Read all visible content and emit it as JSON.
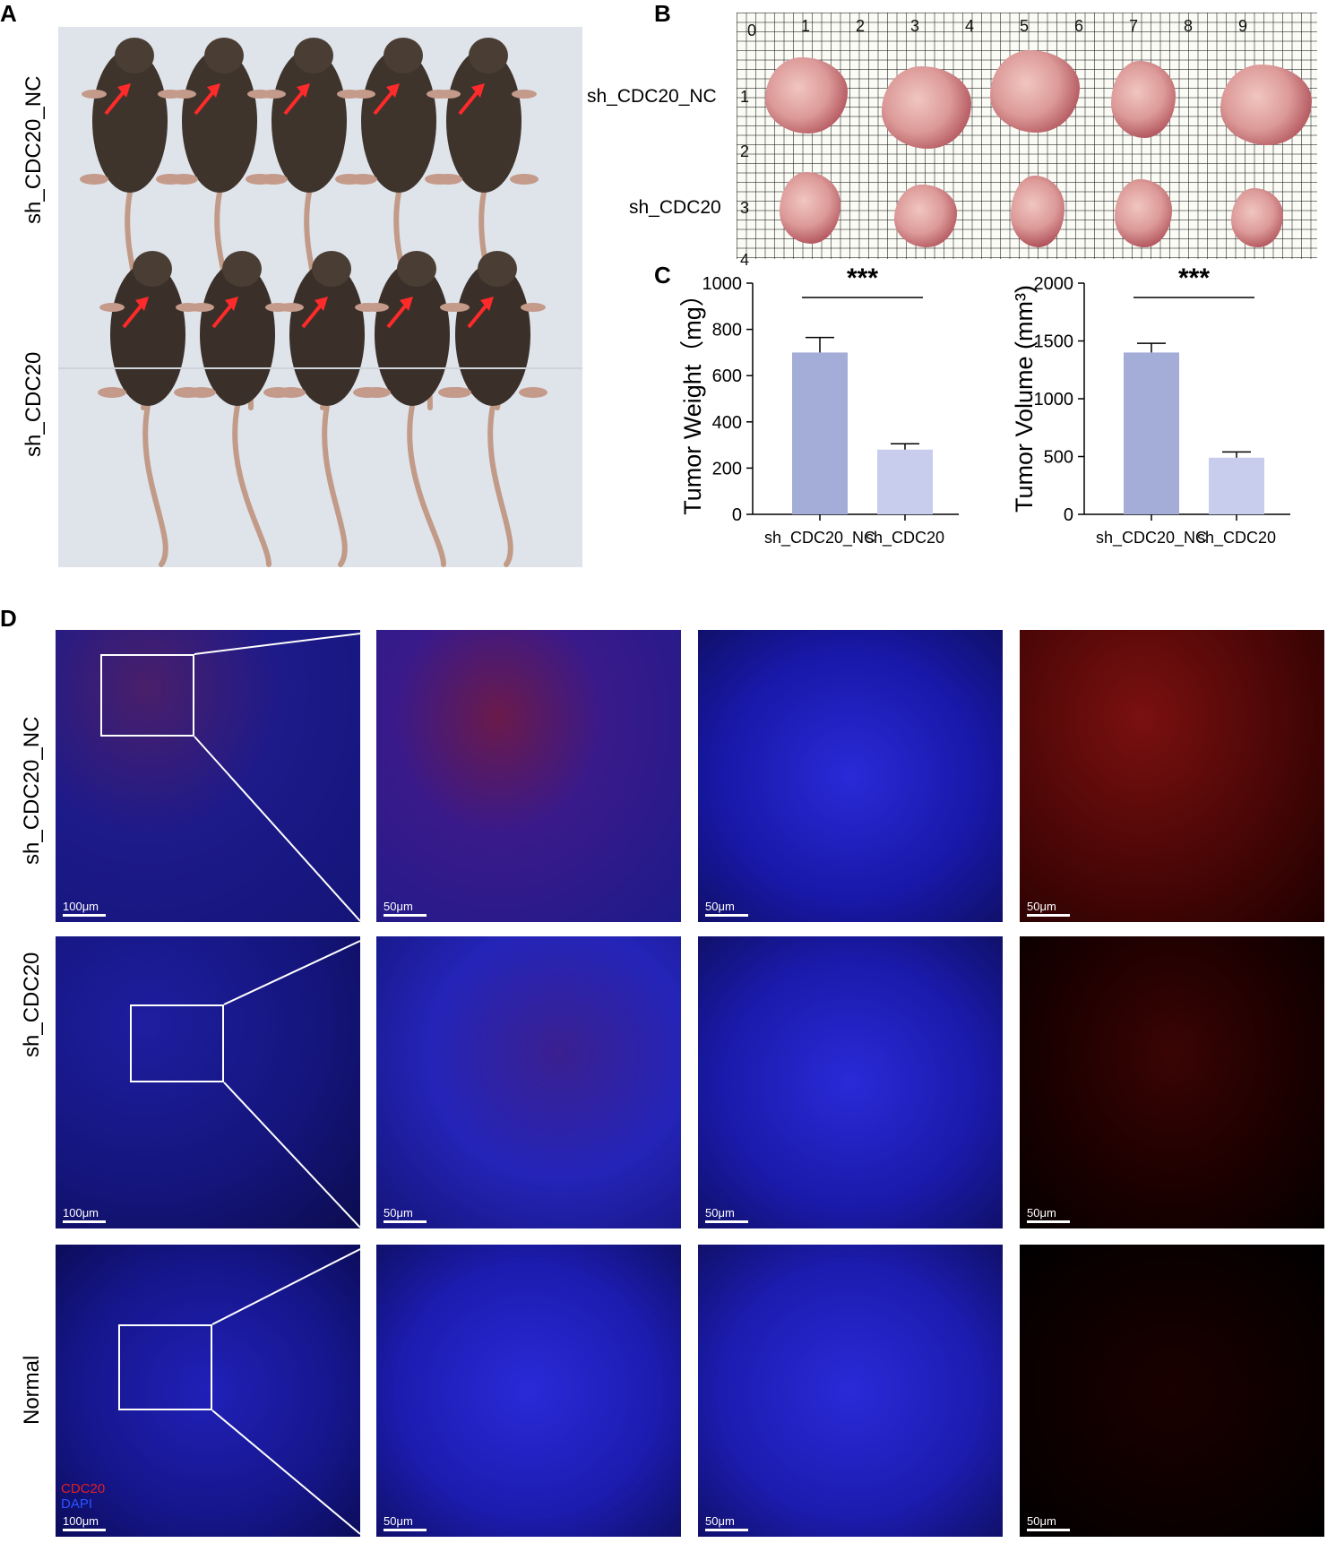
{
  "panels": {
    "a": "A",
    "b": "B",
    "c": "C",
    "d": "D"
  },
  "groups": {
    "nc": "sh_CDC20_NC",
    "kd": "sh_CDC20",
    "normal": "Normal"
  },
  "panel_b": {
    "top_ruler": [
      "0",
      "1",
      "2",
      "3",
      "4",
      "5",
      "6",
      "7",
      "8",
      "9"
    ],
    "side_ruler": [
      "1",
      "2",
      "3",
      "4"
    ]
  },
  "chart_data": [
    {
      "type": "bar",
      "categories": [
        "sh_CDC20_NC",
        "sh_CDC20"
      ],
      "values": [
        700,
        280
      ],
      "errors": [
        65,
        25
      ],
      "ylabel": "Tumor Weight（mg）",
      "ylim": [
        0,
        1000
      ],
      "yticks": [
        "0",
        "200",
        "400",
        "600",
        "800",
        "1000"
      ],
      "significance": "***",
      "colors": [
        "#a4acd8",
        "#c8cdee"
      ]
    },
    {
      "type": "bar",
      "categories": [
        "sh_CDC20_NC",
        "sh_CDC20"
      ],
      "values": [
        1400,
        490
      ],
      "errors": [
        80,
        50
      ],
      "ylabel": "Tumor Volume (mm³)",
      "ylim": [
        0,
        2000
      ],
      "yticks": [
        "0",
        "500",
        "1000",
        "1500",
        "2000"
      ],
      "significance": "***",
      "colors": [
        "#a4acd8",
        "#c8cdee"
      ]
    }
  ],
  "panel_d": {
    "scale_large": "100μm",
    "scale_small": "50μm",
    "legend": {
      "cdc20": "CDC20",
      "dapi": "DAPI"
    },
    "legend_colors": {
      "cdc20": "#e02020",
      "dapi": "#2a55ff"
    }
  }
}
